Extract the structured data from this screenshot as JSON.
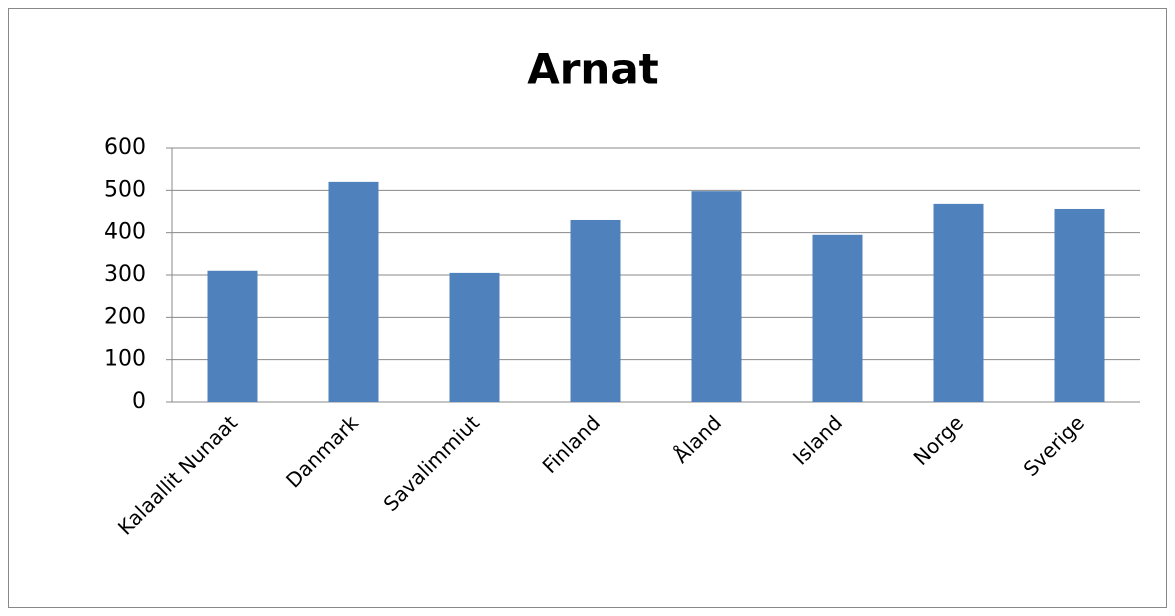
{
  "chart_data": {
    "type": "bar",
    "title": "Arnat",
    "categories": [
      "Kalaallit Nunaat",
      "Danmark",
      "Savalimmiut",
      "Finland",
      "Åland",
      "Island",
      "Norge",
      "Sverige"
    ],
    "values": [
      310,
      520,
      305,
      430,
      498,
      395,
      468,
      456
    ],
    "color": "#4f81bd",
    "ylim": [
      0,
      600
    ],
    "yticks": [
      0,
      100,
      200,
      300,
      400,
      500,
      600
    ],
    "grid": true
  }
}
